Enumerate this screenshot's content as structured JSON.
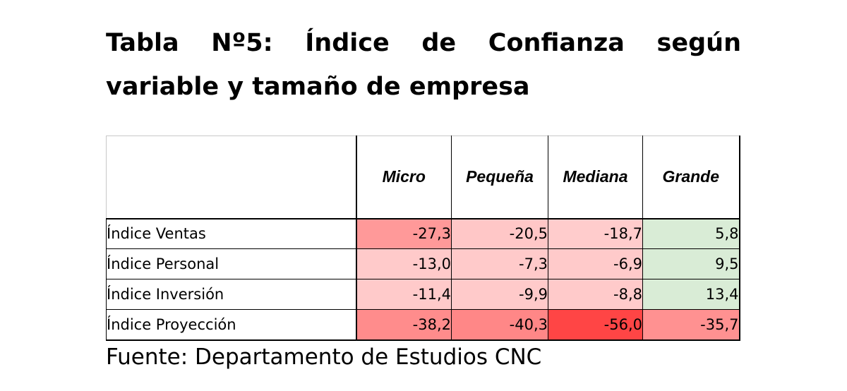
{
  "title": "Tabla Nº5: Índice de Confianza según variable y tamaño de empresa",
  "table": {
    "columns": [
      "Micro",
      "Pequeña",
      "Mediana",
      "Grande"
    ],
    "rows": [
      {
        "label": "Índice Ventas",
        "values": [
          "-27,3",
          "-20,5",
          "-18,7",
          "5,8"
        ],
        "colors": [
          "#ff9999",
          "#ffc7c7",
          "#ffcccc",
          "#d9ecd6"
        ]
      },
      {
        "label": "Índice Personal",
        "values": [
          "-13,0",
          "-7,3",
          "-6,9",
          "9,5"
        ],
        "colors": [
          "#ffcaca",
          "#ffcaca",
          "#ffcaca",
          "#d9ecd6"
        ]
      },
      {
        "label": "Índice Inversión",
        "values": [
          "-11,4",
          "-9,9",
          "-8,8",
          "13,4"
        ],
        "colors": [
          "#ffcaca",
          "#ffcaca",
          "#ffcaca",
          "#d9ecd6"
        ]
      },
      {
        "label": "Índice Proyección",
        "values": [
          "-38,2",
          "-40,3",
          "-56,0",
          "-35,7"
        ],
        "colors": [
          "#ff8c8c",
          "#ff8787",
          "#ff4545",
          "#ff9191"
        ]
      }
    ]
  },
  "source": "Fuente: Departamento de Estudios CNC"
}
